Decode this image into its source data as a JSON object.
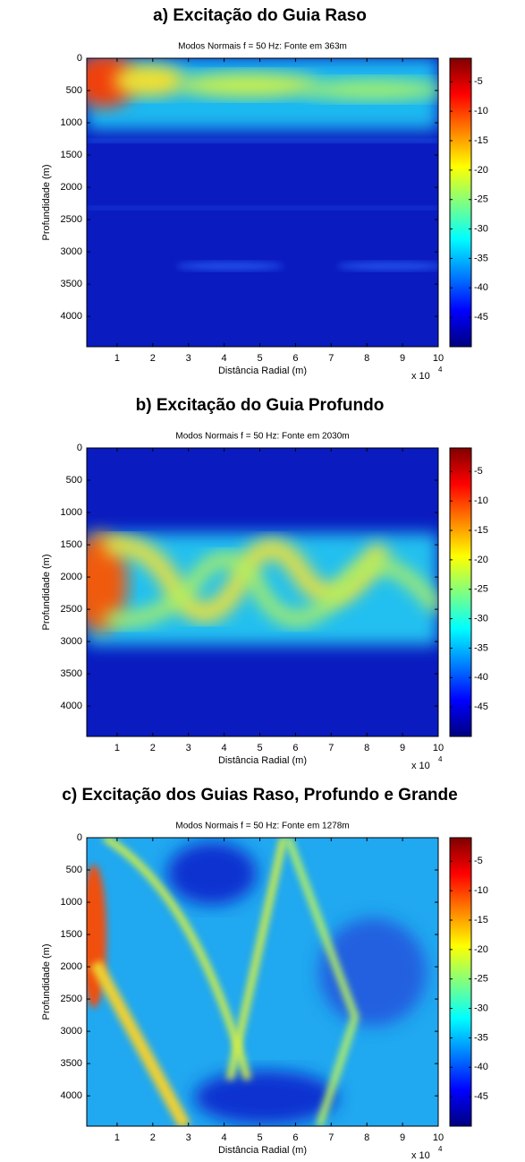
{
  "chart_data": [
    {
      "type": "heatmap",
      "title": "a) Excitação do Guia Raso",
      "subtitle": "Modos Normais f = 50 Hz: Fonte em 363m",
      "x_label": "Distância Radial (m)",
      "y_label": "Profundidade (m)",
      "x_multiplier": "x 10",
      "x_multiplier_exponent": "4",
      "xlim": [
        0.15,
        10
      ],
      "xticks": [
        1,
        2,
        3,
        4,
        5,
        6,
        7,
        8,
        9,
        10
      ],
      "ylim": [
        0,
        4470
      ],
      "yticks": [
        0,
        500,
        1000,
        1500,
        2000,
        2500,
        3000,
        3500,
        4000
      ],
      "y_reversed": true,
      "colormap": "jet",
      "clim": [
        -50,
        -1
      ],
      "cticks": [
        -5,
        -10,
        -15,
        -20,
        -25,
        -30,
        -35,
        -40,
        -45
      ]
    },
    {
      "type": "heatmap",
      "title": "b) Excitação do Guia Profundo",
      "subtitle": "Modos Normais f = 50 Hz: Fonte em 2030m",
      "x_label": "Distância Radial (m)",
      "y_label": "Profundidade (m)",
      "x_multiplier": "x 10",
      "x_multiplier_exponent": "4",
      "xlim": [
        0.15,
        10
      ],
      "xticks": [
        1,
        2,
        3,
        4,
        5,
        6,
        7,
        8,
        9,
        10
      ],
      "ylim": [
        0,
        4470
      ],
      "yticks": [
        0,
        500,
        1000,
        1500,
        2000,
        2500,
        3000,
        3500,
        4000
      ],
      "y_reversed": true,
      "colormap": "jet",
      "clim": [
        -50,
        -1
      ],
      "cticks": [
        -5,
        -10,
        -15,
        -20,
        -25,
        -30,
        -35,
        -40,
        -45
      ]
    },
    {
      "type": "heatmap",
      "title": "c) Excitação dos Guias Raso, Profundo e Grande",
      "subtitle": "Modos Normais f = 50 Hz: Fonte em 1278m",
      "x_label": "Distância Radial (m)",
      "y_label": "Profundidade (m)",
      "x_multiplier": "x 10",
      "x_multiplier_exponent": "4",
      "xlim": [
        0.15,
        10
      ],
      "xticks": [
        1,
        2,
        3,
        4,
        5,
        6,
        7,
        8,
        9,
        10
      ],
      "ylim": [
        0,
        4470
      ],
      "yticks": [
        0,
        500,
        1000,
        1500,
        2000,
        2500,
        3000,
        3500,
        4000
      ],
      "y_reversed": true,
      "colormap": "jet",
      "clim": [
        -50,
        -1
      ],
      "cticks": [
        -5,
        -10,
        -15,
        -20,
        -25,
        -30,
        -35,
        -40,
        -45
      ]
    }
  ]
}
